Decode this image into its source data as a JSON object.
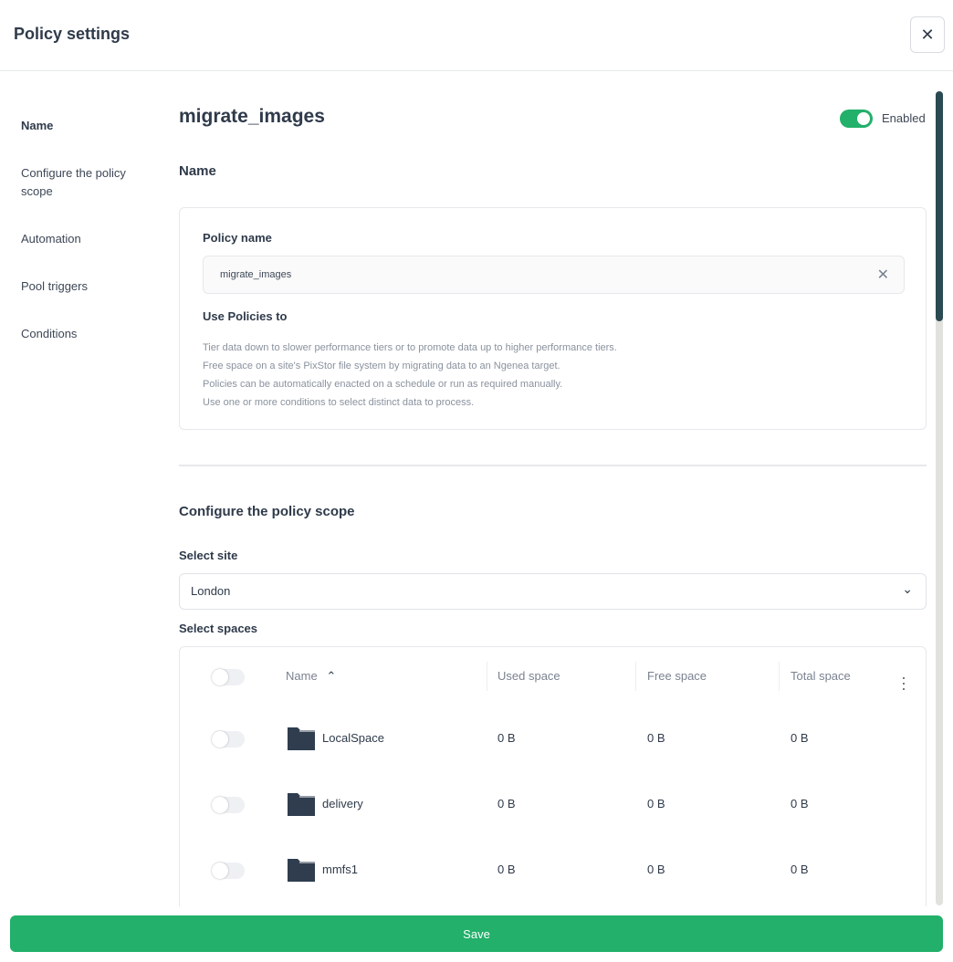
{
  "header": {
    "title": "Policy settings",
    "close_icon": "close-icon"
  },
  "nav": [
    "Name",
    "Configure the policy scope",
    "Automation",
    "Pool triggers",
    "Conditions"
  ],
  "policy": {
    "title": "migrate_images",
    "enabled_label": "Enabled",
    "enabled": true
  },
  "name_section": {
    "heading": "Name",
    "field_label": "Policy name",
    "field_value": "migrate_images",
    "use_heading": "Use Policies to",
    "lines": [
      "Tier data down to slower performance tiers or to promote data up to higher performance tiers.",
      "Free space on a site's PixStor file system by migrating data to an Ngenea target.",
      "Policies can be automatically enacted on a schedule or run as required manually.",
      "Use one or more conditions to select distinct data to process."
    ]
  },
  "scope": {
    "heading": "Configure the policy scope",
    "site_label": "Select site",
    "site_value": "London",
    "spaces_label": "Select spaces",
    "columns": [
      "Name",
      "Used space",
      "Free space",
      "Total space"
    ],
    "rows": [
      {
        "name": "LocalSpace",
        "used": "0 B",
        "free": "0 B",
        "total": "0 B"
      },
      {
        "name": "delivery",
        "used": "0 B",
        "free": "0 B",
        "total": "0 B"
      },
      {
        "name": "mmfs1",
        "used": "0 B",
        "free": "0 B",
        "total": "0 B"
      }
    ]
  },
  "save_label": "Save"
}
